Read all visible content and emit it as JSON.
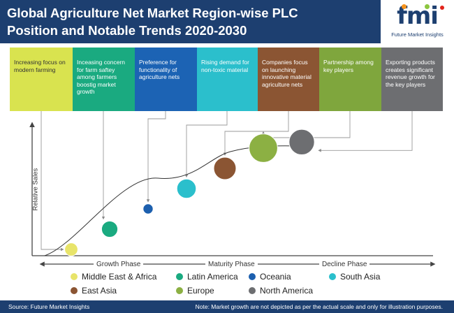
{
  "title_line1": "Global Agriculture Net Market Region-wise PLC",
  "title_line2": "Position and Notable Trends 2020-2030",
  "logo": {
    "text": "fmi",
    "tagline": "Future Market Insights"
  },
  "trends": [
    {
      "text": "Increasing focus on modern farming",
      "color": "#d9e34f",
      "text_color": "#333333"
    },
    {
      "text": "Inceasing concern for farm saftey among farmers boostig market growth",
      "color": "#1aaa80",
      "text_color": "#ffffff"
    },
    {
      "text": "Preference for functionality of agriculture nets",
      "color": "#1c63b4",
      "text_color": "#ffffff"
    },
    {
      "text": "Rising demand for non-toxic material",
      "color": "#2bbfcc",
      "text_color": "#ffffff"
    },
    {
      "text": "Companies focus on launching innovative material agriculture nets",
      "color": "#8b5533",
      "text_color": "#ffffff"
    },
    {
      "text": "Partnership among key players",
      "color": "#7fa63d",
      "text_color": "#ffffff"
    },
    {
      "text": "Exporting products creates significant revenue growth for the key players",
      "color": "#6d6e71",
      "text_color": "#ffffff"
    }
  ],
  "chart_data": {
    "type": "scatter",
    "ylabel": "Relative Sales",
    "phases": [
      "Growth Phase",
      "Maturity Phase",
      "Decline Phase"
    ],
    "points": [
      {
        "region": "Middle East & Africa",
        "position": 1,
        "relative_sales": 1,
        "size": 2,
        "color": "#e8e46a",
        "trend_index": 0
      },
      {
        "region": "Latin America",
        "position": 2,
        "relative_sales": 2,
        "size": 3,
        "color": "#1aaa80",
        "trend_index": 1
      },
      {
        "region": "Oceania",
        "position": 3,
        "relative_sales": 3,
        "size": 1,
        "color": "#1c5fae",
        "trend_index": 2
      },
      {
        "region": "South Asia",
        "position": 4,
        "relative_sales": 4,
        "size": 4,
        "color": "#2bbfcc",
        "trend_index": 3
      },
      {
        "region": "East Asia",
        "position": 5,
        "relative_sales": 5,
        "size": 5,
        "color": "#8b5533",
        "trend_index": 4
      },
      {
        "region": "Europe",
        "position": 6,
        "relative_sales": 6,
        "size": 7,
        "color": "#8cb043",
        "trend_index": 5
      },
      {
        "region": "North America",
        "position": 7,
        "relative_sales": 6.3,
        "size": 6,
        "color": "#6d6e71",
        "trend_index": 6
      }
    ]
  },
  "legend": [
    {
      "label": "Middle East & Africa",
      "color": "#e8e46a"
    },
    {
      "label": "Latin America",
      "color": "#1aaa80"
    },
    {
      "label": "Oceania",
      "color": "#1c5fae"
    },
    {
      "label": "South Asia",
      "color": "#2bbfcc"
    },
    {
      "label": "East Asia",
      "color": "#8b5533"
    },
    {
      "label": "Europe",
      "color": "#8cb043"
    },
    {
      "label": "North America",
      "color": "#6d6e71"
    }
  ],
  "footer": {
    "source": "Source: Future Market Insights",
    "note": "Note: Market growth are not depicted as per the actual scale and only for illustration purposes."
  }
}
